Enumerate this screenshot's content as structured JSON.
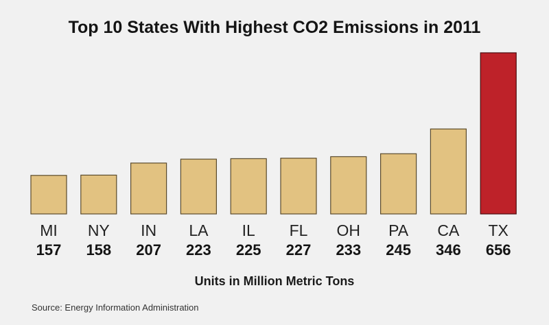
{
  "chart_data": {
    "type": "bar",
    "title": "Top 10 States With Highest CO2 Emissions in 2011",
    "categories": [
      "MI",
      "NY",
      "IN",
      "LA",
      "IL",
      "FL",
      "OH",
      "PA",
      "CA",
      "TX"
    ],
    "values": [
      157,
      158,
      207,
      223,
      225,
      227,
      233,
      245,
      346,
      656
    ],
    "value_labels": [
      "157",
      "158",
      "207",
      "223",
      "225",
      "227",
      "233",
      "245",
      "346",
      "656"
    ],
    "xlabel": "Units in Million Metric Tons",
    "ylabel": "",
    "ylim": [
      0,
      656
    ],
    "grid": false,
    "legend": "none",
    "highlight_index": 9,
    "colors": {
      "bar": "#e2c281",
      "bar_stroke": "#5a4a2c",
      "highlight": "#be2229",
      "highlight_stroke": "#4a0d10"
    }
  },
  "source": "Source: Energy Information Administration"
}
